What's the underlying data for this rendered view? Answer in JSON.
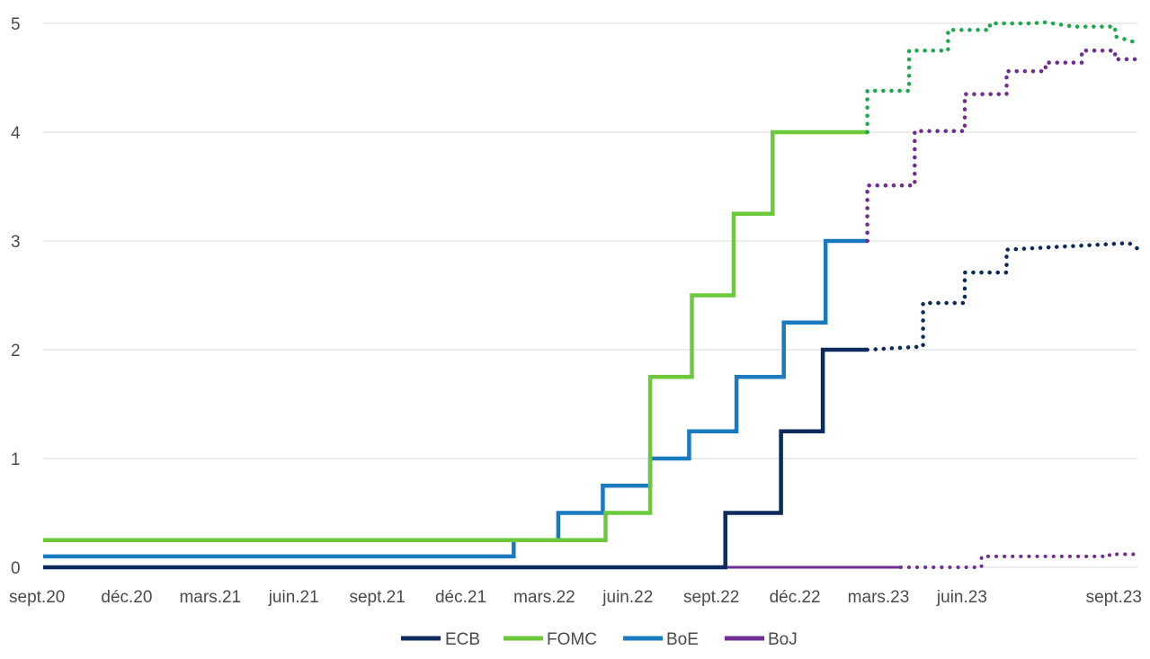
{
  "chart_data": {
    "type": "line",
    "title": "",
    "xlabel": "",
    "ylabel": "",
    "ylim": [
      0,
      5
    ],
    "yticks": [
      "0",
      "1",
      "2",
      "3",
      "4",
      "5"
    ],
    "xticks": [
      "sept.20",
      "déc.20",
      "mars.21",
      "juin.21",
      "sept.21",
      "déc.21",
      "mars.22",
      "juin.22",
      "sept.22",
      "déc.22",
      "mars.23",
      "juin.23",
      "sept.23"
    ],
    "grid": "horizontal",
    "legend_position": "bottom",
    "series": [
      {
        "name": "ECB",
        "color": "#0d2a5c",
        "actual": [
          [
            0,
            0
          ],
          [
            24.5,
            0
          ],
          [
            24.5,
            0.5
          ],
          [
            26.5,
            0.5
          ],
          [
            26.5,
            1.25
          ],
          [
            28,
            1.25
          ],
          [
            28,
            2
          ],
          [
            29.6,
            2
          ]
        ],
        "forecast": [
          [
            29.6,
            2
          ],
          [
            31.6,
            2.03
          ],
          [
            31.6,
            2.43
          ],
          [
            33.1,
            2.43
          ],
          [
            33.1,
            2.71
          ],
          [
            34.6,
            2.71
          ],
          [
            34.6,
            2.92
          ],
          [
            36.8,
            2.95
          ],
          [
            39,
            2.98
          ],
          [
            39.3,
            2.93
          ]
        ]
      },
      {
        "name": "FOMC",
        "color": "#6cc93c",
        "forecast_color": "#1fa84f",
        "actual": [
          [
            0,
            0.25
          ],
          [
            20.2,
            0.25
          ],
          [
            20.2,
            0.5
          ],
          [
            21.8,
            0.5
          ],
          [
            21.8,
            1.75
          ],
          [
            23.3,
            1.75
          ],
          [
            23.3,
            2.5
          ],
          [
            24.8,
            2.5
          ],
          [
            24.8,
            3.25
          ],
          [
            26.2,
            3.25
          ],
          [
            26.2,
            4
          ],
          [
            27.8,
            4
          ],
          [
            29.6,
            4
          ]
        ],
        "forecast": [
          [
            29.6,
            4
          ],
          [
            29.6,
            4.38
          ],
          [
            31.1,
            4.38
          ],
          [
            31.1,
            4.75
          ],
          [
            32.5,
            4.75
          ],
          [
            32.5,
            4.94
          ],
          [
            34,
            4.94
          ],
          [
            34,
            5
          ],
          [
            35.5,
            5
          ],
          [
            36,
            5.01
          ],
          [
            37,
            4.97
          ],
          [
            38.5,
            4.97
          ],
          [
            38.5,
            4.88
          ],
          [
            39.3,
            4.82
          ]
        ]
      },
      {
        "name": "BoE",
        "color": "#1a7abf",
        "actual": [
          [
            0,
            0.1
          ],
          [
            16.9,
            0.1
          ],
          [
            16.9,
            0.25
          ],
          [
            18.5,
            0.25
          ],
          [
            18.5,
            0.5
          ],
          [
            20.1,
            0.5
          ],
          [
            20.1,
            0.75
          ],
          [
            21.8,
            0.75
          ],
          [
            21.8,
            1
          ],
          [
            23.2,
            1
          ],
          [
            23.2,
            1.25
          ],
          [
            24.9,
            1.25
          ],
          [
            24.9,
            1.75
          ],
          [
            26.6,
            1.75
          ],
          [
            26.6,
            2.25
          ],
          [
            28.1,
            2.25
          ],
          [
            28.1,
            3
          ],
          [
            29.6,
            3
          ]
        ],
        "forecast": []
      },
      {
        "name": "BoJ",
        "color": "#6f2c91",
        "actual": [
          [
            0,
            0
          ],
          [
            30.8,
            0
          ]
        ],
        "forecast": [
          [
            29.6,
            3
          ],
          [
            29.6,
            3.51
          ],
          [
            31.3,
            3.51
          ],
          [
            31.3,
            4.01
          ],
          [
            33.1,
            4.01
          ],
          [
            33.1,
            4.35
          ],
          [
            34.6,
            4.35
          ],
          [
            34.6,
            4.56
          ],
          [
            36,
            4.56
          ],
          [
            36,
            4.64
          ],
          [
            37.3,
            4.64
          ],
          [
            37.3,
            4.75
          ],
          [
            38.5,
            4.75
          ],
          [
            38.5,
            4.67
          ],
          [
            39.3,
            4.67
          ]
        ],
        "forecast_low": [
          [
            30.8,
            0
          ],
          [
            33.7,
            0
          ],
          [
            33.7,
            0.1
          ],
          [
            38.3,
            0.1
          ],
          [
            38.3,
            0.12
          ],
          [
            39.3,
            0.12
          ]
        ]
      }
    ]
  }
}
